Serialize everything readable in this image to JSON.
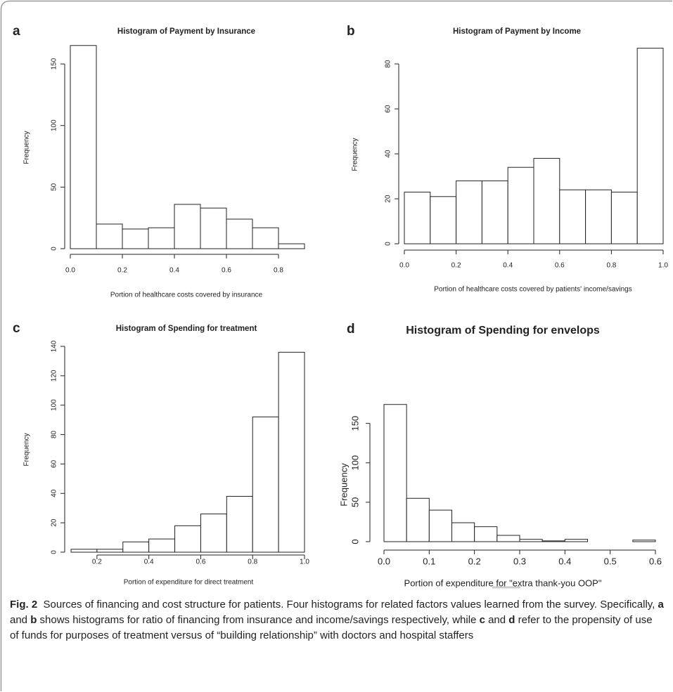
{
  "chart_data": [
    {
      "type": "histogram",
      "panel": "a",
      "title": "Histogram of Payment by Insurance",
      "x_label": "Portion of healthcare costs covered by insurance",
      "y_label": "Frequency",
      "bins": [
        0,
        0.1,
        0.2,
        0.3,
        0.4,
        0.5,
        0.6,
        0.7,
        0.8,
        0.9
      ],
      "values": [
        165,
        20,
        16,
        17,
        36,
        33,
        24,
        17,
        4
      ],
      "color": "#ffffff",
      "xlim": [
        0,
        0.9
      ],
      "ylim": [
        0,
        170
      ],
      "xticks": [
        {
          "value": 0,
          "label": "0.0"
        },
        0.2,
        0.4,
        0.6,
        0.8
      ],
      "yticks": [
        0,
        50,
        100,
        150
      ]
    },
    {
      "type": "histogram",
      "panel": "b",
      "title": "Histogram of Payment by Income",
      "x_label": "Portion of healthcare costs covered by patients' income/savings",
      "y_label": "Frequency",
      "bins": [
        0,
        0.1,
        0.2,
        0.3,
        0.4,
        0.5,
        0.6,
        0.7,
        0.8,
        0.9,
        1.0
      ],
      "values": [
        23,
        21,
        28,
        28,
        34,
        38,
        24,
        24,
        23,
        87
      ],
      "color": "#ffffff",
      "xlim": [
        0,
        1.0
      ],
      "ylim": [
        0,
        90
      ],
      "xticks": [
        {
          "value": 0,
          "label": "0.0"
        },
        0.2,
        0.4,
        0.6,
        0.8,
        {
          "value": 1,
          "label": "1.0"
        }
      ],
      "yticks": [
        0,
        20,
        40,
        60,
        80
      ]
    },
    {
      "type": "histogram",
      "panel": "c",
      "title": "Histogram of Spending for treatment",
      "x_label": "Portion of expenditure for direct treatment",
      "y_label": "Frequency",
      "bins": [
        0.1,
        0.2,
        0.3,
        0.4,
        0.5,
        0.6,
        0.7,
        0.8,
        0.9,
        1.0
      ],
      "values": [
        2,
        2,
        7,
        9,
        18,
        26,
        38,
        92,
        136
      ],
      "color": "#ffffff",
      "xlim": [
        0.1,
        1.0
      ],
      "ylim": [
        0,
        140
      ],
      "xticks": [
        0.2,
        0.4,
        0.6,
        0.8,
        {
          "value": 1,
          "label": "1.0"
        }
      ],
      "yticks": [
        0,
        20,
        40,
        60,
        80,
        100,
        120,
        140
      ]
    },
    {
      "type": "histogram",
      "panel": "d",
      "title": "Histogram of Spending for envelops",
      "x_label": "Portion of expenditure for \"extra thank-you OOP\"",
      "y_label": "Frequency",
      "bins": [
        0,
        0.05,
        0.1,
        0.15,
        0.2,
        0.25,
        0.3,
        0.35,
        0.4,
        0.45,
        0.5,
        0.55,
        0.6
      ],
      "values": [
        174,
        55,
        40,
        24,
        19,
        8,
        3,
        1,
        3,
        0,
        0,
        2
      ],
      "color": "#ffffff",
      "xlim": [
        0,
        0.6
      ],
      "ylim": [
        0,
        180
      ],
      "xticks": [
        {
          "value": 0,
          "label": "0.0"
        },
        0.1,
        0.2,
        0.3,
        0.4,
        0.5,
        0.6
      ],
      "yticks": [
        0,
        50,
        100,
        150
      ]
    }
  ],
  "caption": [
    {
      "text": "Fig. 2",
      "bold": true
    },
    {
      "text": "  Sources of financing and cost structure for patients. Four histograms for related factors values learned from the survey. Specifically, ",
      "bold": false
    },
    {
      "text": "a",
      "bold": true
    },
    {
      "text": " and ",
      "bold": false
    },
    {
      "text": "b",
      "bold": true
    },
    {
      "text": " shows histograms for ratio of financing from insurance and income/savings respectively, while ",
      "bold": false
    },
    {
      "text": "c",
      "bold": true
    },
    {
      "text": " and ",
      "bold": false
    },
    {
      "text": "d",
      "bold": true
    },
    {
      "text": " refer to the propensity of use of funds for purposes of treatment versus of “building relationship” with doctors and hospital staffers",
      "bold": false
    }
  ]
}
